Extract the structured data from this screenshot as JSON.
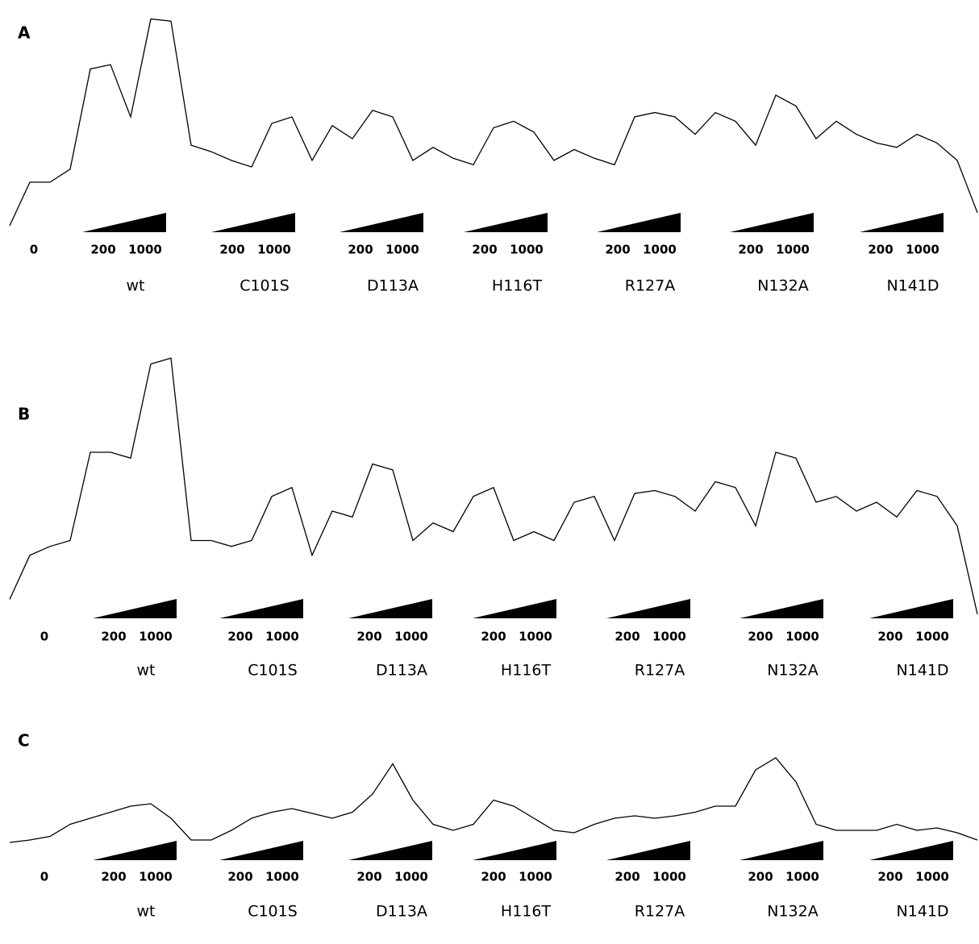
{
  "panels": [
    {
      "label": "A",
      "zero": "0",
      "trace": [
        0,
        20,
        20,
        26,
        72,
        74,
        50,
        95,
        94,
        37,
        34,
        30,
        27,
        47,
        50,
        30,
        46,
        40,
        53,
        50,
        30,
        36,
        31,
        28,
        45,
        48,
        43,
        30,
        35,
        31,
        28,
        50,
        52,
        50,
        42,
        52,
        48,
        37,
        60,
        55,
        40,
        48,
        42,
        38,
        36,
        42,
        38,
        30,
        6
      ],
      "groups": [
        {
          "name": "wt",
          "low": "200",
          "high": "1000"
        },
        {
          "name": "C101S",
          "low": "200",
          "high": "1000"
        },
        {
          "name": "D113A",
          "low": "200",
          "high": "1000"
        },
        {
          "name": "H116T",
          "low": "200",
          "high": "1000"
        },
        {
          "name": "R127A",
          "low": "200",
          "high": "1000"
        },
        {
          "name": "N132A",
          "low": "200",
          "high": "1000"
        },
        {
          "name": "N141D",
          "low": "200",
          "high": "1000"
        }
      ]
    },
    {
      "label": "B",
      "zero": "0",
      "trace": [
        10,
        25,
        28,
        30,
        60,
        60,
        58,
        90,
        92,
        30,
        30,
        28,
        30,
        45,
        48,
        25,
        40,
        38,
        56,
        54,
        30,
        36,
        33,
        45,
        48,
        30,
        33,
        30,
        43,
        45,
        30,
        46,
        47,
        45,
        40,
        50,
        48,
        35,
        60,
        58,
        43,
        45,
        40,
        43,
        38,
        47,
        45,
        35,
        5
      ],
      "groups": [
        {
          "name": "wt",
          "low": "200",
          "high": "1000"
        },
        {
          "name": "C101S",
          "low": "200",
          "high": "1000"
        },
        {
          "name": "D113A",
          "low": "200",
          "high": "1000"
        },
        {
          "name": "H116T",
          "low": "200",
          "high": "1000"
        },
        {
          "name": "R127A",
          "low": "200",
          "high": "1000"
        },
        {
          "name": "N132A",
          "low": "200",
          "high": "1000"
        },
        {
          "name": "N141D",
          "low": "200",
          "high": "1000"
        }
      ]
    },
    {
      "label": "C",
      "zero": "0",
      "trace": [
        10,
        12,
        15,
        25,
        30,
        35,
        40,
        42,
        30,
        12,
        12,
        20,
        30,
        35,
        38,
        34,
        30,
        35,
        50,
        75,
        45,
        25,
        20,
        25,
        45,
        40,
        30,
        20,
        18,
        25,
        30,
        32,
        30,
        32,
        35,
        40,
        40,
        70,
        80,
        60,
        25,
        20,
        20,
        20,
        25,
        20,
        22,
        18,
        12
      ],
      "groups": [
        {
          "name": "wt",
          "low": "200",
          "high": "1000"
        },
        {
          "name": "C101S",
          "low": "200",
          "high": "1000"
        },
        {
          "name": "D113A",
          "low": "200",
          "high": "1000"
        },
        {
          "name": "H116T",
          "low": "200",
          "high": "1000"
        },
        {
          "name": "R127A",
          "low": "200",
          "high": "1000"
        },
        {
          "name": "N132A",
          "low": "200",
          "high": "1000"
        },
        {
          "name": "N141D",
          "low": "200",
          "high": "1000"
        }
      ]
    }
  ]
}
